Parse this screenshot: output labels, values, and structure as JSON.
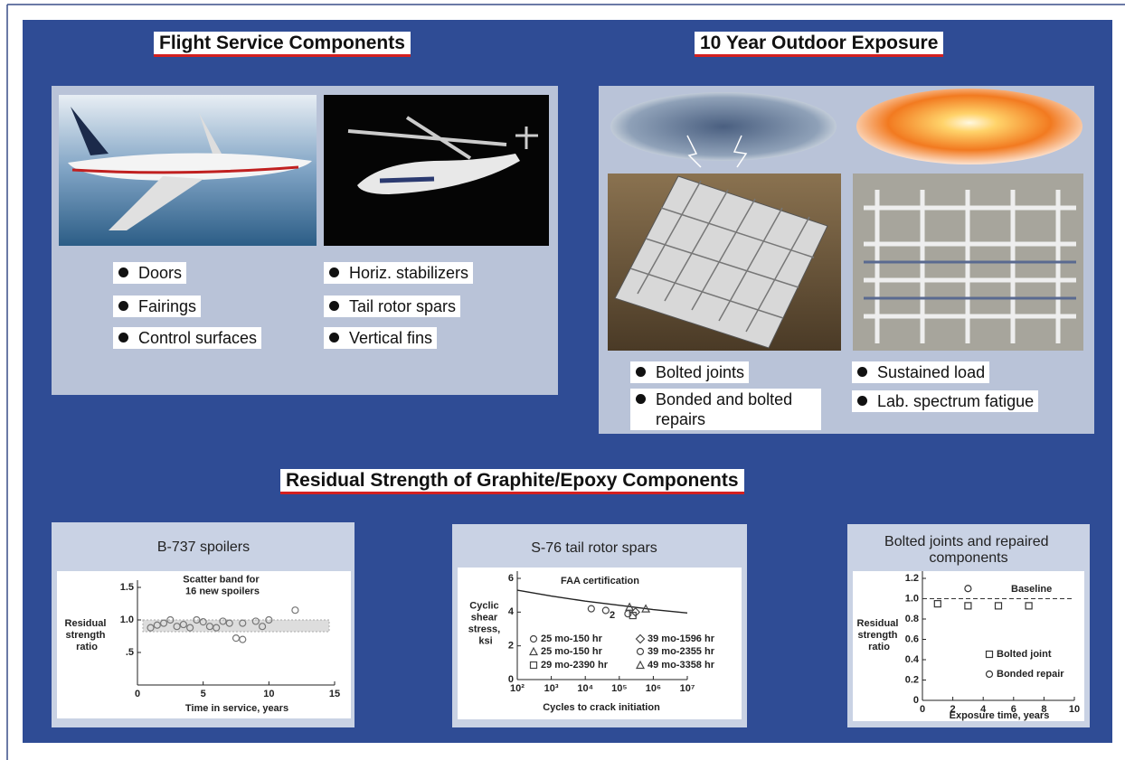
{
  "headings": {
    "flight": "Flight Service Components",
    "outdoor": "10 Year Outdoor Exposure",
    "residual": "Residual Strength of Graphite/Epoxy Components"
  },
  "flight_bullets": [
    [
      "Doors",
      "Fairings",
      "Control surfaces"
    ],
    [
      "Horiz. stabilizers",
      "Tail rotor spars",
      "Vertical fins"
    ]
  ],
  "outdoor_bullets": [
    [
      "Bolted joints",
      "Bonded and bolted repairs"
    ],
    [
      "Sustained load",
      "Lab. spectrum fatigue"
    ]
  ],
  "chart_data": [
    {
      "type": "scatter",
      "title": "B-737 spoilers",
      "ylabel": "Residual strength ratio",
      "xlabel": "Time in service, years",
      "annotation": "Scatter band for 16 new spoilers",
      "xlim": [
        0,
        15
      ],
      "xticks": [
        0,
        5,
        10,
        15
      ],
      "ylim": [
        0,
        1.5
      ],
      "yticks": [
        {
          "value": 0.5,
          "label": ".5"
        },
        {
          "value": 1,
          "label": "1.0"
        },
        1.5
      ],
      "band": [
        0.82,
        1.0
      ],
      "series": [
        {
          "marker": "circle",
          "color": "#777777",
          "x": [
            1,
            1.5,
            2,
            2.5,
            3,
            3.5,
            4,
            4.5,
            5,
            5.5,
            6,
            6.5,
            7,
            7.5,
            8,
            8,
            9,
            9.5,
            10,
            12
          ],
          "values": [
            0.88,
            0.92,
            0.95,
            1.0,
            0.9,
            0.93,
            0.88,
            1.0,
            0.97,
            0.9,
            0.88,
            0.98,
            0.95,
            0.72,
            0.7,
            0.95,
            0.98,
            0.9,
            1.0,
            1.15
          ]
        }
      ]
    },
    {
      "type": "scatter",
      "title": "S-76 tail rotor spars",
      "ylabel": "Cyclic shear stress, ksi",
      "xlabel": "Cycles to crack initiation",
      "annotation": "2",
      "xscale": "log",
      "xlim": [
        100,
        10000000
      ],
      "xticks": [
        {
          "value": 100,
          "label": "10²"
        },
        {
          "value": 1000,
          "label": "10³"
        },
        {
          "value": 10000,
          "label": "10⁴"
        },
        {
          "value": 100000,
          "label": "10⁵"
        },
        {
          "value": 1000000,
          "label": "10⁶"
        },
        {
          "value": 10000000,
          "label": "10⁷"
        }
      ],
      "ylim": [
        0,
        6
      ],
      "yticks": [
        0,
        2,
        4,
        6
      ],
      "series": [
        {
          "name": "FAA certification",
          "marker": "line",
          "color": "#222222",
          "x": [
            100,
            1000,
            10000,
            100000,
            1000000,
            10000000
          ],
          "values": [
            5.3,
            4.95,
            4.65,
            4.4,
            4.15,
            3.95
          ]
        },
        {
          "name": "25 mo-150 hr",
          "marker": "circle",
          "color": "#444444",
          "x": [
            15000,
            40000
          ],
          "values": [
            4.2,
            4.1
          ]
        },
        {
          "name": "25 mo-150 hr",
          "marker": "triangle",
          "color": "#444444",
          "x": [
            200000
          ],
          "values": [
            4.3
          ]
        },
        {
          "name": "29 mo-2390 hr",
          "marker": "square",
          "color": "#444444",
          "x": [
            250000
          ],
          "values": [
            3.8
          ]
        },
        {
          "name": "39 mo-1596 hr",
          "marker": "diamond",
          "color": "#444444",
          "x": [
            300000
          ],
          "values": [
            4.0
          ]
        },
        {
          "name": "39 mo-2355 hr",
          "marker": "circle",
          "color": "#444444",
          "x": [
            180000
          ],
          "values": [
            3.9
          ]
        },
        {
          "name": "49 mo-3358 hr",
          "marker": "triangle",
          "color": "#444444",
          "x": [
            600000
          ],
          "values": [
            4.2
          ]
        }
      ]
    },
    {
      "type": "scatter",
      "title": "Bolted joints and repaired components",
      "ylabel": "Residual strength ratio",
      "xlabel": "Exposure time, years",
      "xlim": [
        0,
        10
      ],
      "xticks": [
        0,
        2,
        4,
        6,
        8,
        10
      ],
      "ylim": [
        0,
        1.2
      ],
      "yticks": [
        0,
        0.2,
        0.4,
        0.6,
        0.8,
        {
          "value": 1,
          "label": "1.0"
        },
        1.2
      ],
      "baseline": 1.0,
      "baseline_label": "Baseline",
      "series": [
        {
          "name": "Bolted joint",
          "marker": "square",
          "color": "#333333",
          "x": [
            1,
            3,
            5,
            7
          ],
          "values": [
            0.95,
            0.93,
            0.93,
            0.93
          ]
        },
        {
          "name": "Bonded repair",
          "marker": "circle",
          "color": "#333333",
          "x": [
            3
          ],
          "values": [
            1.1
          ]
        }
      ]
    }
  ]
}
